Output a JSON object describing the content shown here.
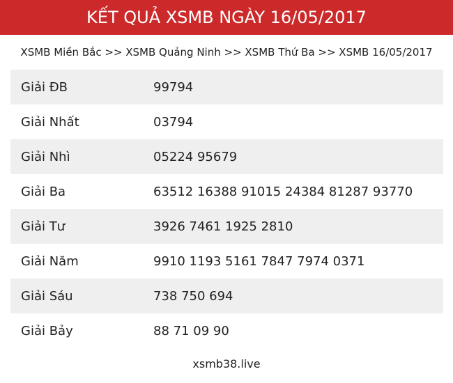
{
  "header": {
    "title": "KẾT QUẢ XSMB NGÀY 16/05/2017"
  },
  "breadcrumb": "XSMB Miền Bắc >> XSMB Quảng Ninh >> XSMB Thứ Ba >> XSMB 16/05/2017",
  "table": {
    "rows": [
      [
        "Giải ĐB",
        "99794"
      ],
      [
        "Giải Nhất",
        "03794"
      ],
      [
        "Giải Nhì",
        "05224 95679"
      ],
      [
        "Giải Ba",
        "63512 16388 91015 24384 81287 93770"
      ],
      [
        "Giải Tư",
        "3926 7461 1925 2810"
      ],
      [
        "Giải Năm",
        "9910 1193 5161 7847 7974 0371"
      ],
      [
        "Giải Sáu",
        "738 750 694"
      ],
      [
        "Giải Bảy",
        "88 71 09 90"
      ]
    ]
  },
  "footer": "xsmb38.live"
}
